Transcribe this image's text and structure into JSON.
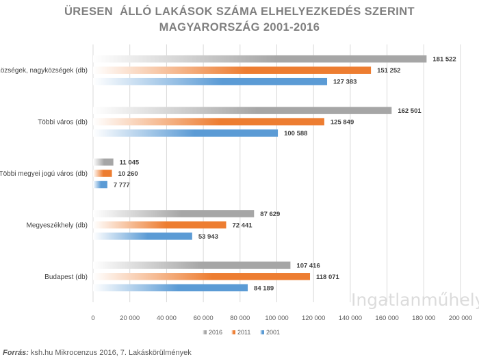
{
  "chart_data": {
    "type": "bar",
    "orientation": "horizontal",
    "title_line1": "ÜRESEN  ÁLLÓ LAKÁSOK SZÁMA ELHELYEZKEDÉS SZERINT",
    "title_line2": "MAGYARORSZÁG 2001-2016",
    "categories": [
      "Községek, nagyközségek (db)",
      "Többi város (db)",
      "Többi megyei jogú város (db)",
      "Megyeszékhely (db)",
      "Budapest (db)"
    ],
    "series": [
      {
        "name": "2016",
        "color": "#a6a6a6",
        "values": [
          181522,
          162501,
          11045,
          87629,
          107416
        ],
        "labels": [
          "181 522",
          "162 501",
          "11 045",
          "87 629",
          "107 416"
        ]
      },
      {
        "name": "2011",
        "color": "#ed7d31",
        "values": [
          151252,
          125849,
          10260,
          72441,
          118071
        ],
        "labels": [
          "151 252",
          "125 849",
          "10 260",
          "72 441",
          "118 071"
        ]
      },
      {
        "name": "2001",
        "color": "#5b9bd5",
        "values": [
          127383,
          100588,
          7777,
          53943,
          84189
        ],
        "labels": [
          "127 383",
          "100 588",
          "7 777",
          "53 943",
          "84 189"
        ]
      }
    ],
    "xlim": [
      0,
      200000
    ],
    "xticks": [
      0,
      20000,
      40000,
      60000,
      80000,
      100000,
      120000,
      140000,
      160000,
      180000,
      200000
    ],
    "xtick_labels": [
      "0",
      "20 000",
      "40 000",
      "60 000",
      "80 000",
      "100 000",
      "120 000",
      "140 000",
      "160 000",
      "180 000",
      "200 000"
    ],
    "legend_order": [
      "2016",
      "2011",
      "2001"
    ],
    "legend_position": "bottom",
    "grid": true
  },
  "watermark": "Ingatlanműhely",
  "source": {
    "label": "Forrás:",
    "text": " ksh.hu Mikrocenzus 2016, 7. Lakáskörülmények"
  }
}
